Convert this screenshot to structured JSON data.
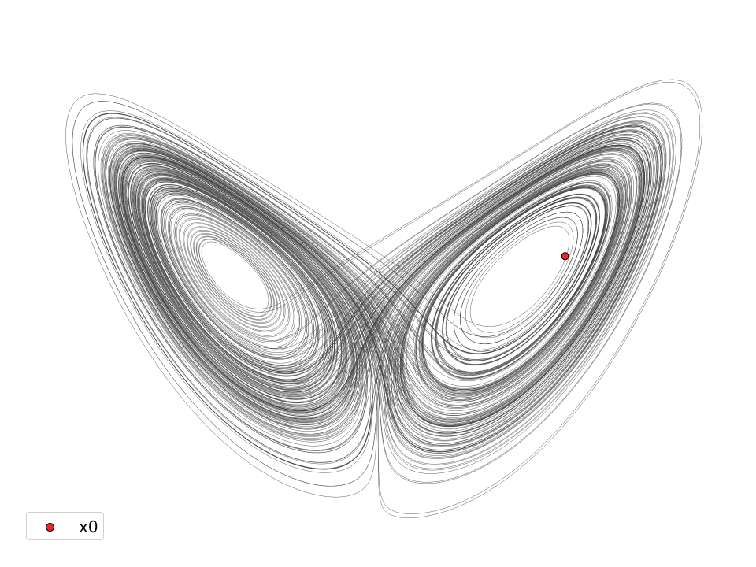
{
  "chart_data": {
    "type": "line",
    "title": "",
    "xlabel": "",
    "ylabel": "",
    "axes_visible": false,
    "grid": false,
    "projection": "x-z",
    "xlim": [
      -20,
      20
    ],
    "ylim": [
      0,
      52
    ],
    "series": [
      {
        "kind": "trajectory",
        "color": "#3c3c3c",
        "system": "lorenz",
        "parameters": {
          "sigma": 10,
          "rho": 28,
          "beta": 2.6667
        }
      },
      {
        "name": "x0",
        "kind": "point",
        "color": "#e8262b",
        "points": [
          {
            "x": 11,
            "z": 29
          }
        ]
      }
    ],
    "legend": {
      "placement": "lower-left",
      "entries": [
        {
          "label": "x0",
          "color": "#e8262b"
        }
      ]
    }
  }
}
